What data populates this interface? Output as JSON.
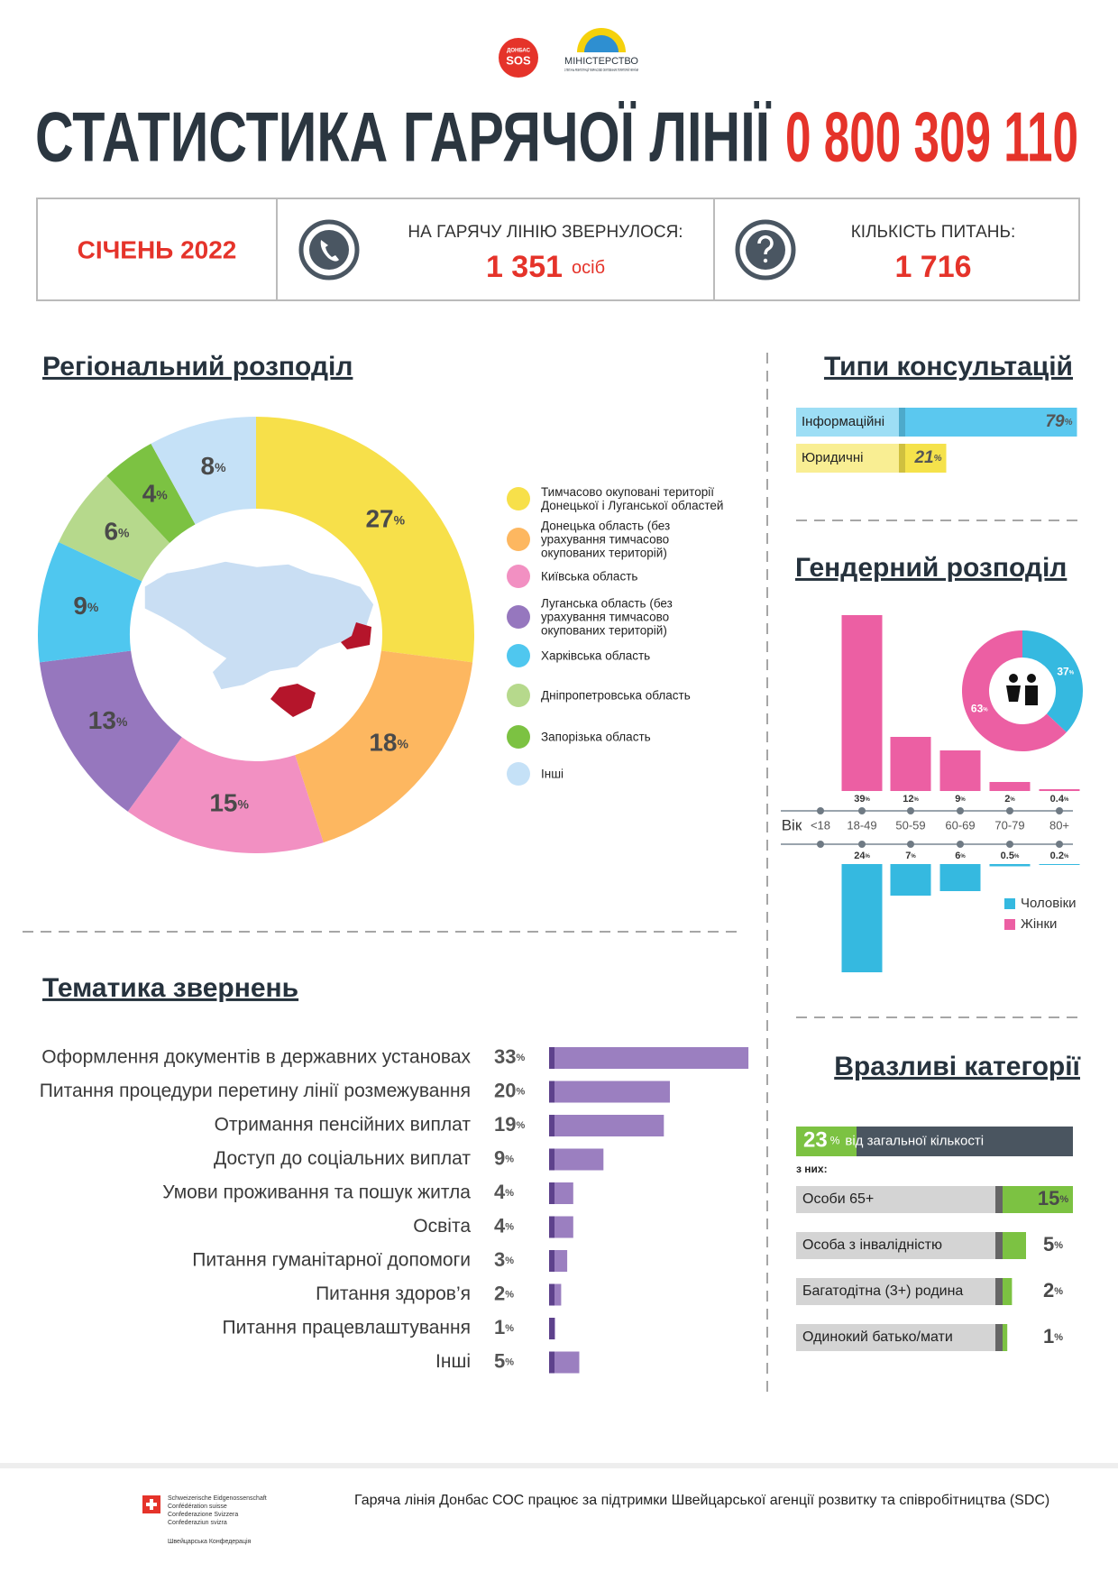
{
  "header": {
    "sos_top": "ДОНБАС",
    "sos": "SOS",
    "ministry": "МІНІСТЕРСТВО",
    "ministry_sub": "З ПИТАНЬ РЕІНТЕГРАЦІЇ ТИМЧАСОВО ОКУПОВАНИХ ТЕРИТОРІЙ УКРАЇНИ",
    "title": "СТАТИСТИКА ГАРЯЧОЇ ЛІНІЇ",
    "phone": "0 800 309 110"
  },
  "summary": {
    "period": "СІЧЕНЬ 2022",
    "callers_label": "НА ГАРЯЧУ ЛІНІЮ ЗВЕРНУЛОСЯ:",
    "callers": "1 351",
    "callers_unit": "осіб",
    "questions_label": "КІЛЬКІСТЬ ПИТАНЬ:",
    "questions": "1 716"
  },
  "chart_data": [
    {
      "type": "pie",
      "title": "Регіональний розподіл",
      "categories": [
        "Тимчасово окуповані території Донецької і Луганської областей",
        "Донецька область (без урахування тимчасово окупованих територій)",
        "Київська область",
        "Луганська область (без урахування тимчасово окупованих територій)",
        "Харківська область",
        "Дніпропетровська область",
        "Запорізька область",
        "Інші"
      ],
      "values": [
        27,
        18,
        15,
        13,
        9,
        6,
        4,
        8
      ],
      "colors": [
        "#f7e04a",
        "#fdb760",
        "#f290c2",
        "#9677be",
        "#4fc7ef",
        "#b6d98c",
        "#7cc242",
        "#c5e1f7"
      ],
      "unit": "%"
    },
    {
      "type": "bar",
      "orientation": "horizontal",
      "title": "Типи консультацій",
      "categories": [
        "Інформаційні",
        "Юридичні"
      ],
      "values": [
        79,
        21
      ],
      "colors": [
        "#5bc8ef",
        "#f5e24b"
      ],
      "unit": "%"
    },
    {
      "type": "bar",
      "title": "Гендерний розподіл",
      "x_label": "Вік",
      "categories": [
        "<18",
        "18-49",
        "50-59",
        "60-69",
        "70-79",
        "80+"
      ],
      "series": [
        {
          "name": "Чоловіки",
          "color": "#35b9e0",
          "values": [
            null,
            24,
            7,
            6,
            0.5,
            0.2
          ]
        },
        {
          "name": "Жінки",
          "color": "#ec5fa3",
          "values": [
            null,
            39,
            12,
            9,
            2,
            0.4
          ]
        }
      ],
      "unit": "%"
    },
    {
      "type": "pie",
      "values": [
        37,
        63
      ],
      "colors": [
        "#35b9e0",
        "#ec5fa3"
      ],
      "unit": "%"
    },
    {
      "type": "bar",
      "orientation": "horizontal",
      "title": "Тематика звернень",
      "categories": [
        "Оформлення документів в державних установах",
        "Питання процедури перетину лінії розмежування",
        "Отримання пенсійних виплат",
        "Доступ до соціальних виплат",
        "Умови проживання та пошук житла",
        "Освіта",
        "Питання гуманітарної допомоги",
        "Питання здоров’я",
        "Питання працевлаштування",
        "Інші"
      ],
      "values": [
        33,
        20,
        19,
        9,
        4,
        4,
        3,
        2,
        1,
        5
      ],
      "color": "#9b7fc0",
      "unit": "%"
    },
    {
      "type": "bar",
      "orientation": "horizontal",
      "title": "Вразливі категорії",
      "total": 23,
      "total_label": "від загальної кількості",
      "subtitle": "з них:",
      "categories": [
        "Особи 65+",
        "Особа з інвалідністю",
        "Багатодітна (3+) родина",
        "Одинокий батько/мати"
      ],
      "values": [
        15,
        5,
        2,
        1
      ],
      "color": "#7cc242",
      "unit": "%"
    }
  ],
  "footer": {
    "swiss": [
      "Schweizerische Eidgenossenschaft",
      "Confédération suisse",
      "Confederazione Svizzera",
      "Confederaziun svizra"
    ],
    "swiss_ua": "Швейцарська Конфедерація",
    "text": "Гаряча лінія Донбас СОС працює за підтримки Швейцарської агенції розвитку та співробітництва (SDC)"
  }
}
